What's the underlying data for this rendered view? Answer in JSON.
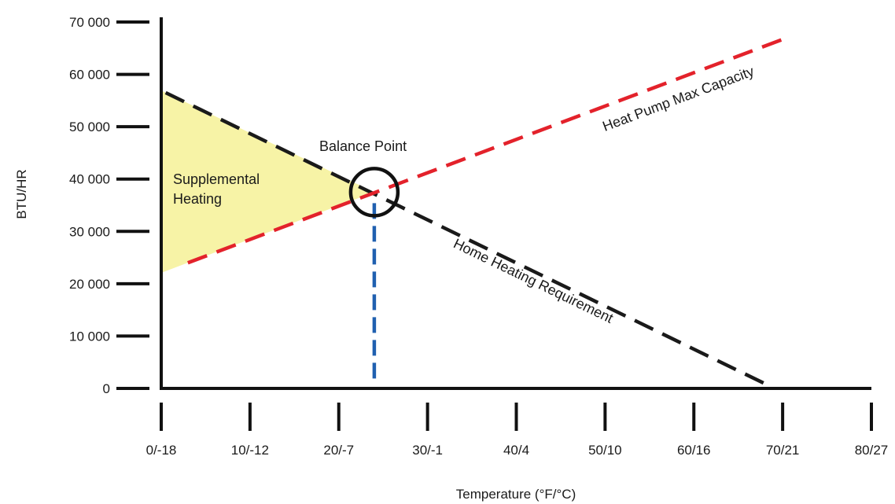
{
  "chart_data": {
    "type": "line",
    "xlabel": "Temperature (°F/°C)",
    "ylabel": "BTU/HR",
    "x_tick_values": [
      0,
      10,
      20,
      30,
      40,
      50,
      60,
      70,
      80
    ],
    "x_tick_labels": [
      "0/-18",
      "10/-12",
      "20/-7",
      "30/-1",
      "40/4",
      "50/10",
      "60/16",
      "70/21",
      "80/27"
    ],
    "y_tick_values": [
      0,
      10000,
      20000,
      30000,
      40000,
      50000,
      60000,
      70000
    ],
    "y_tick_labels": [
      "0",
      "10 000",
      "20 000",
      "30 000",
      "40 000",
      "50 000",
      "60 000",
      "70 000"
    ],
    "xlim": [
      0,
      80
    ],
    "ylim": [
      0,
      70000
    ],
    "grid": false,
    "series": [
      {
        "name": "Home Heating Requirement",
        "color": "#1a1a1a",
        "style": "dashed",
        "x": [
          0.5,
          68.5
        ],
        "y": [
          56500,
          500
        ]
      },
      {
        "name": "Heat Pump Max Capacity",
        "color": "#e3222b",
        "style": "dashed",
        "x": [
          3,
          70.5
        ],
        "y": [
          24000,
          67000
        ]
      }
    ],
    "annotations": {
      "supplemental_label_line1": "Supplemental",
      "supplemental_label_line2": "Heating",
      "supplemental_fill_color": "#f7f3a6",
      "balance_point_label": "Balance Point",
      "balance_point": {
        "x": 24,
        "y": 37500
      },
      "balance_marker_color": "#2060b0"
    }
  }
}
